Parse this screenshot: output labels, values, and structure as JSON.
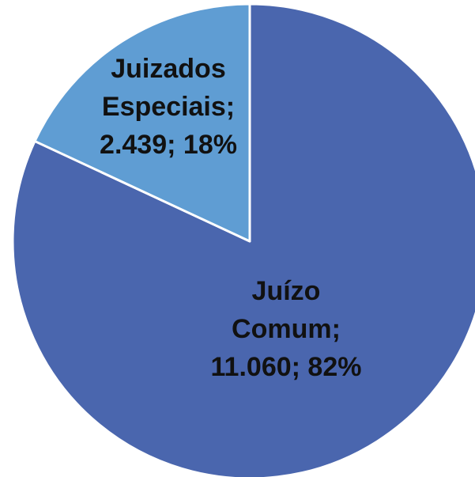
{
  "chart_data": {
    "type": "pie",
    "categories": [
      "Juízo Comum",
      "Juizados Especiais"
    ],
    "values": [
      11060,
      2439
    ],
    "value_labels": [
      "11.060",
      "2.439"
    ],
    "percentages": [
      82,
      18
    ],
    "percentage_labels": [
      "82%",
      "18%"
    ],
    "colors": [
      "#4a66ae",
      "#5f9dd3"
    ]
  }
}
